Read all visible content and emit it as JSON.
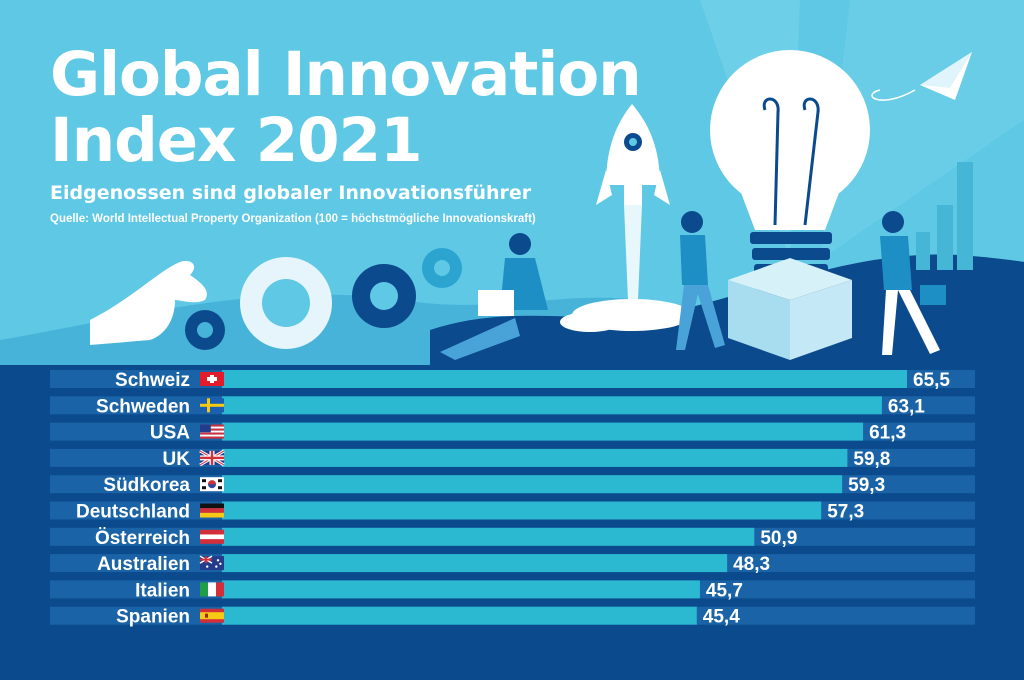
{
  "header": {
    "title": "Global Innovation Index 2021",
    "subtitle": "Eidgenossen sind globaler Innovationsführer",
    "source": "Quelle: World Intellectual Property Organization (100 = höchstmögliche Innovationskraft)"
  },
  "colors": {
    "sky": "#5ec8e5",
    "navy": "#0b4a8c",
    "track": "#1a63a6",
    "bar": "#2bb9d2",
    "text": "#ffffff"
  },
  "chart_data": {
    "type": "bar",
    "orientation": "horizontal",
    "xlim": [
      0,
      65.5
    ],
    "grid": false,
    "categories": [
      "Schweiz",
      "Schweden",
      "USA",
      "UK",
      "Südkorea",
      "Deutschland",
      "Österreich",
      "Australien",
      "Italien",
      "Spanien"
    ],
    "values": [
      65.5,
      63.1,
      61.3,
      59.8,
      59.3,
      57.3,
      50.9,
      48.3,
      45.7,
      45.4
    ],
    "value_labels": [
      "65,5",
      "63,1",
      "61,3",
      "59,8",
      "59,3",
      "57,3",
      "50,9",
      "48,3",
      "45,7",
      "45,4"
    ],
    "flag_icons": [
      "flag-ch-icon",
      "flag-se-icon",
      "flag-us-icon",
      "flag-gb-icon",
      "flag-kr-icon",
      "flag-de-icon",
      "flag-at-icon",
      "flag-au-icon",
      "flag-it-icon",
      "flag-es-icon"
    ]
  }
}
